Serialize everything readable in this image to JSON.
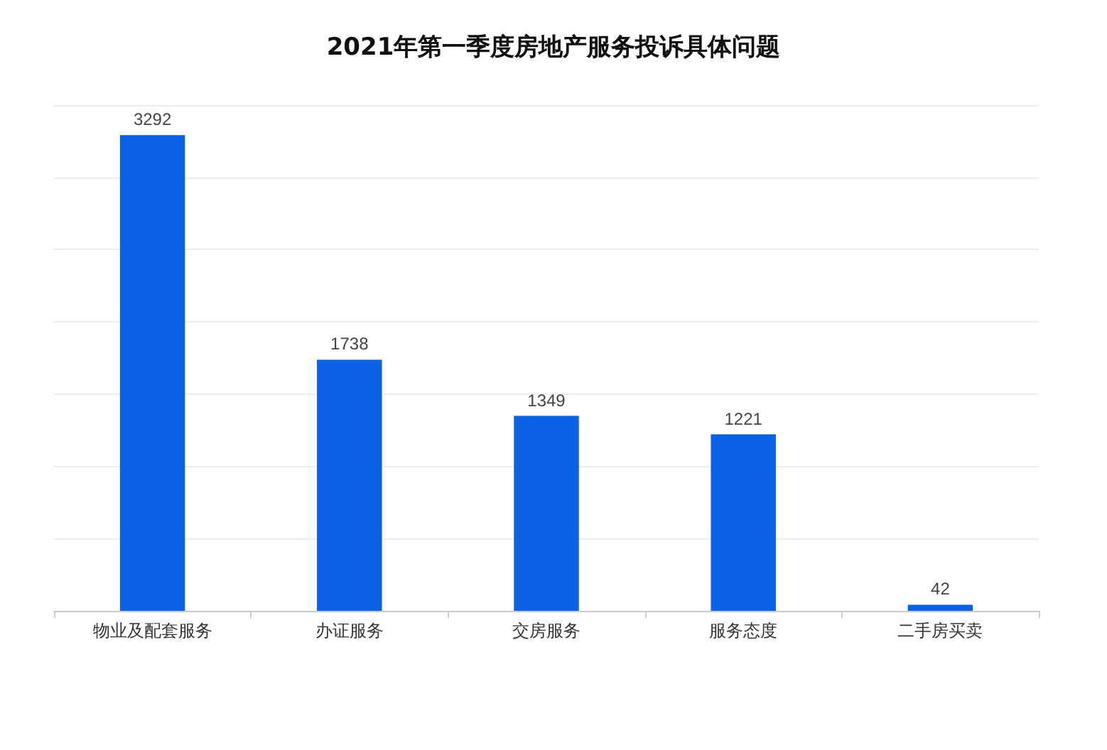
{
  "chart_data": {
    "type": "bar",
    "title": "2021年第一季度房地产服务投诉具体问题",
    "categories": [
      "物业及配套服务",
      "办证服务",
      "交房服务",
      "服务态度",
      "二手房买卖"
    ],
    "values": [
      3292,
      1738,
      1349,
      1221,
      42
    ],
    "color": "#0b62e4",
    "data_labels": true,
    "ylim": [
      0,
      3500
    ],
    "yticks": [
      {
        "value": 0,
        "label": null
      },
      {
        "value": 500,
        "label": null
      },
      {
        "value": 1000,
        "label": null
      },
      {
        "value": 1500,
        "label": null
      },
      {
        "value": 2000,
        "label": null
      },
      {
        "value": 2500,
        "label": null
      },
      {
        "value": 3000,
        "label": null
      },
      {
        "value": 3500,
        "label": null
      }
    ],
    "grid": "y"
  }
}
